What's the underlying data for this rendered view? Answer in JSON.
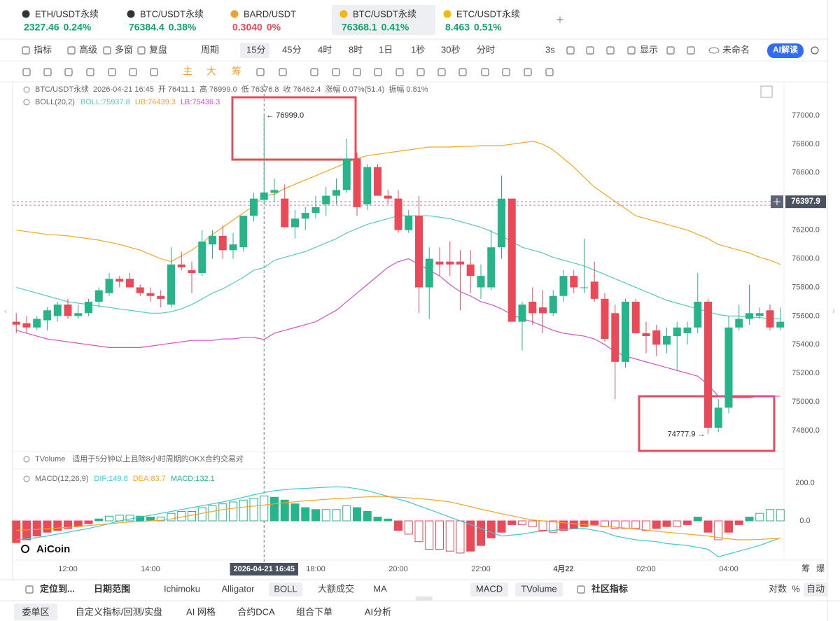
{
  "tabs": [
    {
      "name": "ETH/USDT永续",
      "price": "2327.46",
      "change": "0.24%",
      "color": "#12a36e"
    },
    {
      "name": "BTC/USDT永续",
      "price": "76384.4",
      "change": "0.38%",
      "color": "#12a36e"
    },
    {
      "name": "BARD/USDT",
      "price": "0.3040",
      "change": "0%",
      "color": "#e84a57"
    },
    {
      "name": "BTC/USDT永续",
      "price": "76368.1",
      "change": "0.41%",
      "color": "#12a36e"
    },
    {
      "name": "ETC/USDT永续",
      "price": "8.463",
      "change": "0.51%",
      "color": "#12a36e"
    }
  ],
  "toolbar": {
    "items": [
      "指标",
      "高级",
      "多窗",
      "复盘"
    ],
    "period": "周期",
    "periods": [
      "15分",
      "45分",
      "4时",
      "8时",
      "1日",
      "1秒",
      "30秒",
      "分时"
    ],
    "refresh": "3s",
    "display": "显示",
    "layout": "未命名",
    "ai": "AI解读"
  },
  "drawing": [
    "主",
    "大",
    "筹"
  ],
  "info": [
    "BTC/USDT永续",
    "2026-04-21 16:45",
    "开 76411.1",
    "高 76999.0",
    "低 76376.8",
    "收 76462.4",
    "涨幅 0.07%(51.4)",
    "振幅 0.81%"
  ],
  "boll_title": "BOLL(20,2)",
  "tvolume": {
    "name": "TVolume",
    "note": "适用于5分钟以上且除8小时周期的OKX合约交易对"
  },
  "macd_title": "MACD(12,26,9)",
  "logo": "AiCoin",
  "axis_extras": [
    "筹",
    "爆"
  ],
  "bottom_bar": {
    "locate": "定位到...",
    "range": "日期范围",
    "indicators": [
      "Ichimoku",
      "Alligator",
      "BOLL",
      "大额成交",
      "MA"
    ],
    "sub": [
      "MACD",
      "TVolume"
    ],
    "community": "社区指标",
    "right": [
      "对数",
      "%",
      "自动"
    ]
  },
  "footer": [
    "委单区",
    "自定义指标/回测/实盘",
    "AI 网格",
    "合约DCA",
    "组合下单",
    "AI分析"
  ],
  "chart_data": [
    {
      "type": "candlestick",
      "categories": [
        null,
        null,
        null,
        null,
        null,
        "12:00",
        null,
        null,
        null,
        null,
        null,
        null,
        null,
        "14:00",
        null,
        null,
        null,
        null,
        null,
        null,
        null,
        null,
        null,
        null,
        null,
        null,
        null,
        null,
        null,
        "18:00",
        null,
        null,
        null,
        null,
        null,
        null,
        null,
        "20:00",
        null,
        null,
        null,
        null,
        null,
        null,
        null,
        "22:00",
        null,
        null,
        null,
        null,
        null,
        null,
        null,
        "4月22",
        null,
        null,
        null,
        null,
        null,
        null,
        null,
        "02:00",
        null,
        null,
        null,
        null,
        null,
        null,
        null,
        "04:00",
        null,
        null,
        null,
        null,
        null
      ],
      "open": [
        75560,
        75550,
        75520,
        75570,
        75600,
        75680,
        75600,
        75620,
        75700,
        75760,
        75860,
        75860,
        75800,
        75760,
        75740,
        75680,
        75960,
        75920,
        75900,
        76100,
        76160,
        76060,
        76080,
        76300,
        76411.1,
        76460,
        76420,
        76220,
        76280,
        76320,
        76380,
        76440,
        76480,
        76700,
        76380,
        76640,
        76440,
        76420,
        76200,
        76300,
        75800,
        75980,
        75980,
        75980,
        75960,
        75800,
        75800,
        76080,
        76420,
        75560,
        75700,
        75660,
        75620,
        75740,
        75880,
        75800,
        75840,
        75720,
        75620,
        75280,
        75700,
        75480,
        75500,
        75400,
        75460,
        75480,
        75520,
        75700,
        74820,
        74960,
        75520,
        75580,
        75600,
        75640,
        75520
      ],
      "high": [
        75620,
        75600,
        75600,
        75660,
        75700,
        75720,
        75680,
        75720,
        75800,
        75900,
        75880,
        75900,
        75820,
        75800,
        75780,
        76080,
        76050,
        75980,
        76200,
        76200,
        76230,
        76180,
        76300,
        76460,
        76999.0,
        76560,
        76520,
        76340,
        76360,
        76440,
        76500,
        76560,
        76840,
        76740,
        76660,
        76660,
        76480,
        76480,
        76340,
        76440,
        76080,
        76080,
        76120,
        76060,
        76060,
        75960,
        76200,
        76580,
        76420,
        75700,
        75800,
        75780,
        75780,
        75920,
        75920,
        76140,
        75980,
        75760,
        75680,
        75720,
        75720,
        75560,
        75540,
        75520,
        75560,
        75560,
        75900,
        75720,
        75020,
        75600,
        75680,
        75820,
        75660,
        75680,
        75660
      ],
      "low": [
        75480,
        75480,
        75500,
        75500,
        75560,
        75580,
        75580,
        75600,
        75660,
        75740,
        75800,
        75800,
        75740,
        75700,
        75660,
        75660,
        75920,
        75760,
        75880,
        76000,
        76000,
        76000,
        76050,
        76260,
        76376.8,
        76400,
        76220,
        76140,
        76200,
        76280,
        76300,
        76380,
        76460,
        76300,
        76340,
        76440,
        76380,
        76180,
        76180,
        75620,
        75580,
        75880,
        75880,
        75640,
        75760,
        75720,
        75780,
        76000,
        75560,
        75360,
        75540,
        75480,
        75600,
        75700,
        75760,
        75760,
        75700,
        75420,
        75020,
        75240,
        75480,
        75340,
        75320,
        75340,
        75220,
        75400,
        75480,
        74777.9,
        74790,
        74920,
        75500,
        75540,
        75580,
        75500,
        75500
      ],
      "close": [
        75540,
        75520,
        75580,
        75640,
        75680,
        75600,
        75620,
        75700,
        75780,
        75860,
        75840,
        75800,
        75760,
        75740,
        75720,
        75960,
        75940,
        75900,
        76120,
        76160,
        76060,
        76100,
        76300,
        76420,
        76462.4,
        76480,
        76220,
        76280,
        76320,
        76360,
        76440,
        76480,
        76700,
        76360,
        76640,
        76440,
        76420,
        76200,
        76300,
        75800,
        76000,
        75960,
        75960,
        75960,
        75880,
        75880,
        76080,
        76420,
        75560,
        75680,
        75620,
        75620,
        75740,
        75880,
        75800,
        75800,
        75720,
        75440,
        75280,
        75700,
        75480,
        75460,
        75400,
        75460,
        75520,
        75520,
        75700,
        74820,
        74960,
        75520,
        75580,
        75620,
        75620,
        75520,
        75560
      ],
      "up_color": "#26b48a",
      "down_color": "#ea4a57",
      "series": [
        {
          "name": "BOLL:75937.8",
          "color": "#4fcdb9",
          "values": [
            75800,
            75780,
            75760,
            75740,
            75720,
            75700,
            75690,
            75680,
            75670,
            75660,
            75650,
            75640,
            75630,
            75620,
            75620,
            75630,
            75650,
            75680,
            75720,
            75760,
            75790,
            75830,
            75870,
            75920,
            75937.8,
            75990,
            76010,
            76030,
            76050,
            76080,
            76110,
            76140,
            76180,
            76210,
            76240,
            76260,
            76280,
            76300,
            76300,
            76300,
            76300,
            76290,
            76280,
            76260,
            76240,
            76220,
            76190,
            76160,
            76120,
            76080,
            76060,
            76040,
            76010,
            75990,
            75970,
            75950,
            75920,
            75890,
            75860,
            75830,
            75800,
            75770,
            75740,
            75710,
            75690,
            75670,
            75650,
            75630,
            75610,
            75600,
            75600,
            75590,
            75590,
            75580,
            75580
          ]
        },
        {
          "name": "UB:76439.3",
          "color": "#f5a623",
          "values": [
            76200,
            76190,
            76180,
            76170,
            76165,
            76160,
            76150,
            76140,
            76130,
            76115,
            76100,
            76080,
            76060,
            76030,
            76000,
            75980,
            76020,
            76060,
            76110,
            76170,
            76220,
            76270,
            76320,
            76370,
            76439.3,
            76450,
            76490,
            76520,
            76550,
            76580,
            76610,
            76640,
            76670,
            76700,
            76720,
            76730,
            76740,
            76750,
            76760,
            76770,
            76780,
            76780,
            76780,
            76785,
            76785,
            76790,
            76790,
            76790,
            76800,
            76810,
            76820,
            76800,
            76760,
            76700,
            76640,
            76570,
            76500,
            76450,
            76400,
            76350,
            76300,
            76280,
            76260,
            76240,
            76220,
            76200,
            76170,
            76140,
            76100,
            76080,
            76060,
            76040,
            76010,
            75990,
            75960
          ]
        },
        {
          "name": "LB:75436.3",
          "color": "#d94fc8",
          "values": [
            75500,
            75480,
            75460,
            75440,
            75430,
            75420,
            75410,
            75400,
            75390,
            75380,
            75380,
            75380,
            75380,
            75390,
            75400,
            75410,
            75420,
            75430,
            75430,
            75430,
            75440,
            75440,
            75450,
            75450,
            75436.3,
            75480,
            75500,
            75520,
            75540,
            75560,
            75600,
            75640,
            75700,
            75760,
            75820,
            75880,
            75940,
            75980,
            76000,
            75960,
            75920,
            75880,
            75820,
            75770,
            75740,
            75700,
            75680,
            75650,
            75610,
            75580,
            75560,
            75530,
            75500,
            75480,
            75470,
            75460,
            75440,
            75400,
            75350,
            75320,
            75300,
            75280,
            75260,
            75240,
            75220,
            75200,
            75180,
            75120,
            75040,
            75030,
            75030,
            75030,
            75040,
            75040,
            75040
          ]
        }
      ],
      "ylim": [
        74700,
        77200
      ],
      "yticks": [
        {
          "value": 74800,
          "label": "74800.0"
        },
        {
          "value": 75000,
          "label": "75000.0"
        },
        {
          "value": 75200,
          "label": "75200.0"
        },
        {
          "value": 75400,
          "label": "75400.0"
        },
        {
          "value": 75600,
          "label": "75600.0"
        },
        {
          "value": 75800,
          "label": "75800.0"
        },
        {
          "value": 76000,
          "label": "76000.0"
        },
        {
          "value": 76200,
          "label": "76200.0"
        },
        {
          "value": 76400,
          "label": "76400.0"
        },
        {
          "value": 76600,
          "label": "76600.0"
        },
        {
          "value": 76800,
          "label": "76800.0"
        },
        {
          "value": 77000,
          "label": "77000.0"
        }
      ],
      "last_price": 76397.9,
      "max_label": "← 76999.0",
      "min_label": "74777.9 →",
      "crosshair_label": "2026-04-21 16:45"
    },
    {
      "type": "macd",
      "values": [
        -115,
        -100,
        -80,
        -60,
        -50,
        -40,
        -30,
        -15,
        10,
        25,
        30,
        30,
        25,
        20,
        20,
        40,
        50,
        50,
        70,
        80,
        90,
        100,
        110,
        120,
        132.1,
        125,
        110,
        90,
        70,
        60,
        60,
        60,
        80,
        70,
        50,
        20,
        10,
        -50,
        -70,
        -110,
        -150,
        -150,
        -160,
        -170,
        -160,
        -130,
        -90,
        -60,
        -20,
        -20,
        -30,
        -50,
        -60,
        -50,
        -40,
        -30,
        -20,
        -30,
        -40,
        -40,
        -40,
        -50,
        -40,
        -30,
        -30,
        -20,
        20,
        -60,
        -100,
        -60,
        -20,
        20,
        40,
        60,
        60
      ],
      "value_name": "MACD:132.1",
      "value_color": "#26b48a",
      "down_color": "#ea4a57",
      "series": [
        {
          "name": "DIF:149.8",
          "color": "#3cc8d8",
          "values": [
            -100,
            -95,
            -88,
            -80,
            -70,
            -60,
            -50,
            -40,
            -28,
            -15,
            0,
            10,
            20,
            30,
            40,
            50,
            60,
            70,
            80,
            90,
            100,
            112,
            125,
            138,
            149.8,
            160,
            165,
            170,
            172,
            175,
            178,
            180,
            178,
            170,
            160,
            145,
            130,
            115,
            100,
            80,
            60,
            40,
            20,
            0,
            -20,
            -40,
            -60,
            -80,
            -75,
            -70,
            -60,
            -55,
            -50,
            -45,
            -42,
            -40,
            -50,
            -60,
            -80,
            -90,
            -100,
            -105,
            -110,
            -120,
            -125,
            -130,
            -140,
            -150,
            -190,
            -175,
            -160,
            -145,
            -130,
            -110,
            -90
          ]
        },
        {
          "name": "DEA:83.7",
          "color": "#f5a623",
          "values": [
            -50,
            -48,
            -45,
            -42,
            -38,
            -34,
            -30,
            -25,
            -20,
            -15,
            -10,
            -6,
            -3,
            0,
            3,
            10,
            20,
            30,
            40,
            50,
            60,
            67,
            73,
            78,
            83.7,
            90,
            96,
            101,
            106,
            110,
            114,
            118,
            120,
            124,
            127,
            130,
            128,
            125,
            122,
            118,
            113,
            107,
            100,
            88,
            75,
            62,
            50,
            38,
            27,
            15,
            5,
            0,
            -5,
            -10,
            -15,
            -20,
            -24,
            -28,
            -33,
            -38,
            -43,
            -48,
            -55,
            -60,
            -65,
            -70,
            -75,
            -80,
            -88,
            -95,
            -100,
            -100,
            -98,
            -95,
            -92
          ]
        }
      ],
      "ylim": [
        -210,
        240
      ],
      "yticks": [
        {
          "value": 0,
          "label": "0.0"
        },
        {
          "value": 200,
          "label": "200.0"
        }
      ]
    }
  ]
}
